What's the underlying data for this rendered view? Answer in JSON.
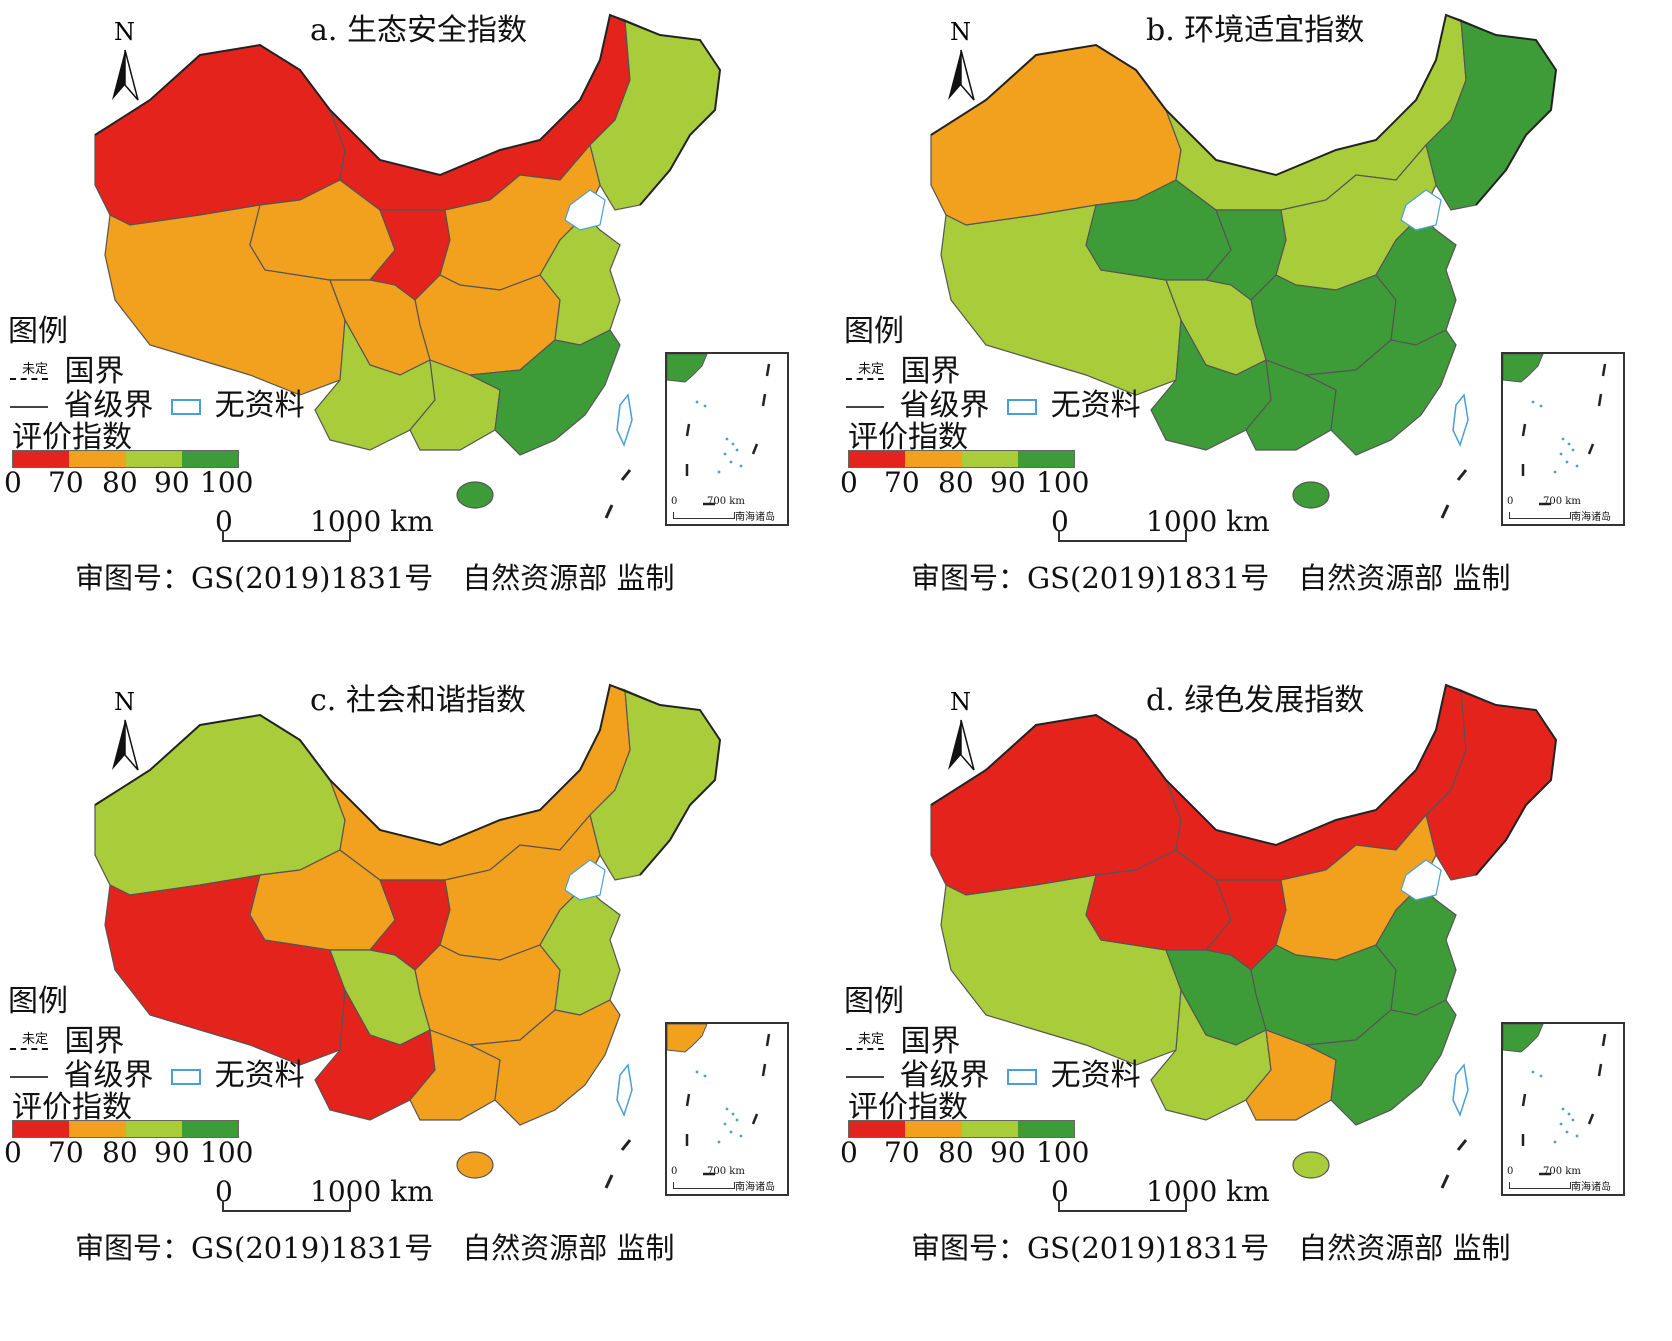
{
  "legend": {
    "title": "图例",
    "undetermined_label": "未定",
    "national_border_label": "国界",
    "provincial_border_label": "省级界",
    "no_data_label": "无资料",
    "index_label": "评价指数",
    "classes": [
      {
        "range": "0-70",
        "color": "#e3231c"
      },
      {
        "range": "70-80",
        "color": "#f2a11e"
      },
      {
        "range": "80-90",
        "color": "#a9cd3a"
      },
      {
        "range": "90-100",
        "color": "#3e9c38"
      }
    ],
    "ticks": [
      "0",
      "70",
      "80",
      "90",
      "100"
    ]
  },
  "north_label": "N",
  "scale": {
    "start": "0",
    "end": "1000 km"
  },
  "inset": {
    "scale_start": "0",
    "scale_end": "700 km",
    "label": "南海诸岛"
  },
  "approval_text": "审图号：GS(2019)1831号　自然资源部 监制",
  "colors": {
    "red": "#e3231c",
    "orange": "#f2a11e",
    "lightgreen": "#a9cd3a",
    "darkgreen": "#3e9c38",
    "water": "#4a9fd6"
  },
  "panels": [
    {
      "title": "a. 生态安全指数",
      "regions": {
        "northwest": "red",
        "tibet": "orange",
        "qinghai": "orange",
        "inner_mongolia": "red",
        "gansu_ningxia": "red",
        "northeast": "lightgreen",
        "north_china": "orange",
        "central": "orange",
        "sichuan": "orange",
        "yunnan": "lightgreen",
        "guangxi": "lightgreen",
        "east_coast": "lightgreen",
        "southeast": "darkgreen",
        "hainan": "darkgreen",
        "taiwan": "none"
      }
    },
    {
      "title": "b. 环境适宜指数",
      "regions": {
        "northwest": "orange",
        "tibet": "lightgreen",
        "qinghai": "darkgreen",
        "inner_mongolia": "lightgreen",
        "gansu_ningxia": "darkgreen",
        "northeast": "darkgreen",
        "north_china": "lightgreen",
        "central": "darkgreen",
        "sichuan": "lightgreen",
        "yunnan": "darkgreen",
        "guangxi": "darkgreen",
        "east_coast": "darkgreen",
        "southeast": "darkgreen",
        "hainan": "darkgreen",
        "taiwan": "none"
      }
    },
    {
      "title": "c. 社会和谐指数",
      "regions": {
        "northwest": "lightgreen",
        "tibet": "red",
        "qinghai": "orange",
        "inner_mongolia": "orange",
        "gansu_ningxia": "red",
        "northeast": "lightgreen",
        "north_china": "orange",
        "central": "orange",
        "sichuan": "lightgreen",
        "yunnan": "red",
        "guangxi": "orange",
        "east_coast": "lightgreen",
        "southeast": "orange",
        "hainan": "orange",
        "taiwan": "none"
      }
    },
    {
      "title": "d. 绿色发展指数",
      "regions": {
        "northwest": "red",
        "tibet": "lightgreen",
        "qinghai": "red",
        "inner_mongolia": "red",
        "gansu_ningxia": "red",
        "northeast": "red",
        "north_china": "orange",
        "central": "darkgreen",
        "sichuan": "darkgreen",
        "yunnan": "lightgreen",
        "guangxi": "orange",
        "east_coast": "darkgreen",
        "southeast": "darkgreen",
        "hainan": "lightgreen",
        "taiwan": "none"
      }
    }
  ]
}
